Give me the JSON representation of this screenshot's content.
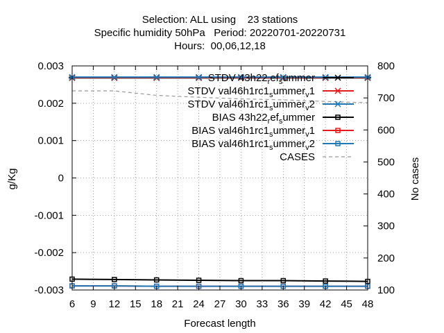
{
  "chart_data": {
    "type": "line",
    "title_lines": [
      "Selection: ALL using    23 stations",
      "Specific humidity 50hPa   Period: 20220701-20220731",
      "Hours:  00,06,12,18"
    ],
    "xlabel": "Forecast length",
    "ylabel": "g/Kg",
    "y2label": "No cases",
    "xlim": [
      6,
      48
    ],
    "ylim": [
      -0.003,
      0.003
    ],
    "y2lim": [
      100,
      800
    ],
    "x_ticks": [
      "6",
      "9",
      "12",
      "15",
      "18",
      "21",
      "24",
      "27",
      "30",
      "33",
      "36",
      "39",
      "42",
      "45",
      "48"
    ],
    "y_ticks": [
      "0.003",
      "0.002",
      "0.001",
      "0",
      "-0.001",
      "-0.002",
      "-0.003"
    ],
    "y2_ticks": [
      "800",
      "700",
      "600",
      "500",
      "400",
      "300",
      "200",
      "100"
    ],
    "grid": true,
    "legend_position": "top-right",
    "x": [
      6,
      12,
      18,
      24,
      30,
      36,
      42,
      48
    ],
    "series": [
      {
        "name": "STDV 43h22_ref_summer",
        "legend_main": "STDV 43h22",
        "legend_sub1": "r",
        "legend_mid": "ef",
        "legend_sub2": "s",
        "legend_end": "ummer",
        "color": "#000000",
        "marker": "star",
        "axis": "y1",
        "values": [
          0.00268,
          0.00268,
          0.00268,
          0.00268,
          0.00268,
          0.00268,
          0.00268,
          0.00268
        ]
      },
      {
        "name": "STDV val46h1rc1_summer_v1",
        "legend_main": "STDV val46h1rc1",
        "legend_sub1": "s",
        "legend_mid": "ummer",
        "legend_sub2": "v",
        "legend_end": "1",
        "color": "#e41a1c",
        "marker": "x",
        "axis": "y1",
        "values": [
          0.00269,
          0.00269,
          0.00269,
          0.00269,
          0.00269,
          0.00269,
          0.00269,
          0.00269
        ]
      },
      {
        "name": "STDV val46h1rc1_summer_v2",
        "legend_main": "STDV val46h1rc1",
        "legend_sub1": "s",
        "legend_mid": "ummer",
        "legend_sub2": "v",
        "legend_end": "2",
        "color": "#1f77b4",
        "marker": "star",
        "axis": "y1",
        "values": [
          0.0027,
          0.0027,
          0.0027,
          0.0027,
          0.0027,
          0.0027,
          0.0027,
          0.0027
        ]
      },
      {
        "name": "BIAS 43h22_ref_summer",
        "legend_main": "BIAS 43h22",
        "legend_sub1": "r",
        "legend_mid": "ef",
        "legend_sub2": "s",
        "legend_end": "ummer",
        "color": "#000000",
        "marker": "square",
        "axis": "y1",
        "values": [
          -0.00271,
          -0.00272,
          -0.00273,
          -0.00274,
          -0.00275,
          -0.00275,
          -0.00276,
          -0.00277
        ]
      },
      {
        "name": "BIAS val46h1rc1_summer_v1",
        "legend_main": "BIAS val46h1rc1",
        "legend_sub1": "s",
        "legend_mid": "ummer",
        "legend_sub2": "v",
        "legend_end": "1",
        "color": "#e41a1c",
        "marker": "square",
        "axis": "y1",
        "values": [
          -0.00289,
          -0.00289,
          -0.0029,
          -0.0029,
          -0.0029,
          -0.0029,
          -0.0029,
          -0.0029
        ]
      },
      {
        "name": "BIAS val46h1rc1_summer_v2",
        "legend_main": "BIAS val46h1rc1",
        "legend_sub1": "s",
        "legend_mid": "ummer",
        "legend_sub2": "v",
        "legend_end": "2",
        "color": "#1f77b4",
        "marker": "square",
        "axis": "y1",
        "values": [
          -0.00289,
          -0.00289,
          -0.0029,
          -0.0029,
          -0.0029,
          -0.0029,
          -0.0029,
          -0.0029
        ]
      },
      {
        "name": "CASES",
        "legend_main": "CASES",
        "legend_sub1": "",
        "legend_mid": "",
        "legend_sub2": "",
        "legend_end": "",
        "color": "#999999",
        "marker": "none",
        "dash": true,
        "axis": "y2",
        "values": [
          722,
          722,
          708,
          702,
          697,
          694,
          689,
          685
        ]
      }
    ]
  }
}
